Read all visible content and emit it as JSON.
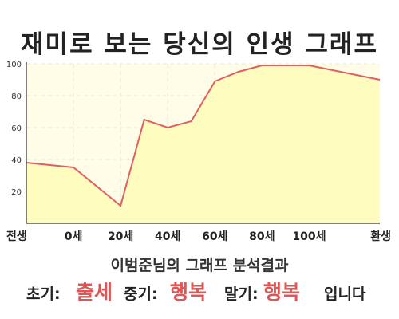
{
  "chart_data": {
    "type": "area",
    "title": "재미로 보는 당신의 인생 그래프",
    "x_ticks": [
      "전생",
      "0세",
      "20세",
      "40세",
      "60세",
      "80세",
      "100세",
      "환생"
    ],
    "y_ticks": [
      "20",
      "40",
      "60",
      "80",
      "100"
    ],
    "ylim": [
      0,
      100
    ],
    "grid": true,
    "colors": {
      "line": "#e06060",
      "fill": "#fffcc0",
      "plot_bg": "#fffde8"
    },
    "series": [
      {
        "points": [
          [
            "전생",
            38
          ],
          [
            "0세",
            35
          ],
          [
            "20세",
            11
          ],
          [
            "30세",
            65
          ],
          [
            "40세",
            60
          ],
          [
            "50세",
            64
          ],
          [
            "60세",
            89
          ],
          [
            "70세",
            95
          ],
          [
            "80세",
            99
          ],
          [
            "100세",
            99
          ],
          [
            "환생",
            90
          ]
        ]
      }
    ]
  },
  "caption": "이범준님의 그래프 분석결과",
  "summary": {
    "early_label": "초기:",
    "early_value": "출세",
    "middle_label": "중기:",
    "middle_value": "행복",
    "late_label": "말기:",
    "late_value": "행복",
    "ending": "입니다"
  }
}
